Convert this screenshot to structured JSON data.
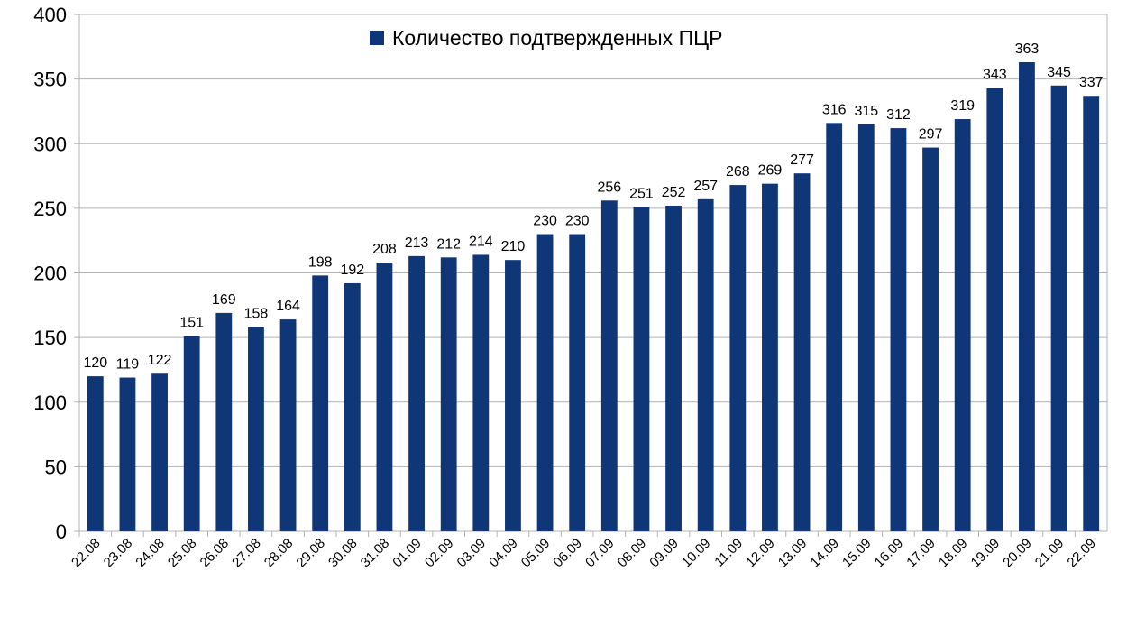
{
  "chart_data": {
    "type": "bar",
    "title": "",
    "xlabel": "",
    "ylabel": "",
    "ylim": [
      0,
      400
    ],
    "yticks": [
      0,
      50,
      100,
      150,
      200,
      250,
      300,
      350,
      400
    ],
    "grid": true,
    "legend_position": "top-center",
    "bar_color": "#0f3778",
    "categories": [
      "22.08",
      "23.08",
      "24.08",
      "25.08",
      "26.08",
      "27.08",
      "28.08",
      "29.08",
      "30.08",
      "31.08",
      "01.09",
      "02.09",
      "03.09",
      "04.09",
      "05.09",
      "06.09",
      "07.09",
      "08.09",
      "09.09",
      "10.09",
      "11.09",
      "12.09",
      "13.09",
      "14.09",
      "15.09",
      "16.09",
      "17.09",
      "18.09",
      "19.09",
      "20.09",
      "21.09",
      "22.09"
    ],
    "series": [
      {
        "name": "Количество подтвержденных ПЦР",
        "values": [
          120,
          119,
          122,
          151,
          169,
          158,
          164,
          198,
          192,
          208,
          213,
          212,
          214,
          210,
          230,
          230,
          256,
          251,
          252,
          257,
          268,
          269,
          277,
          316,
          315,
          312,
          297,
          319,
          343,
          363,
          345,
          337
        ]
      }
    ]
  }
}
